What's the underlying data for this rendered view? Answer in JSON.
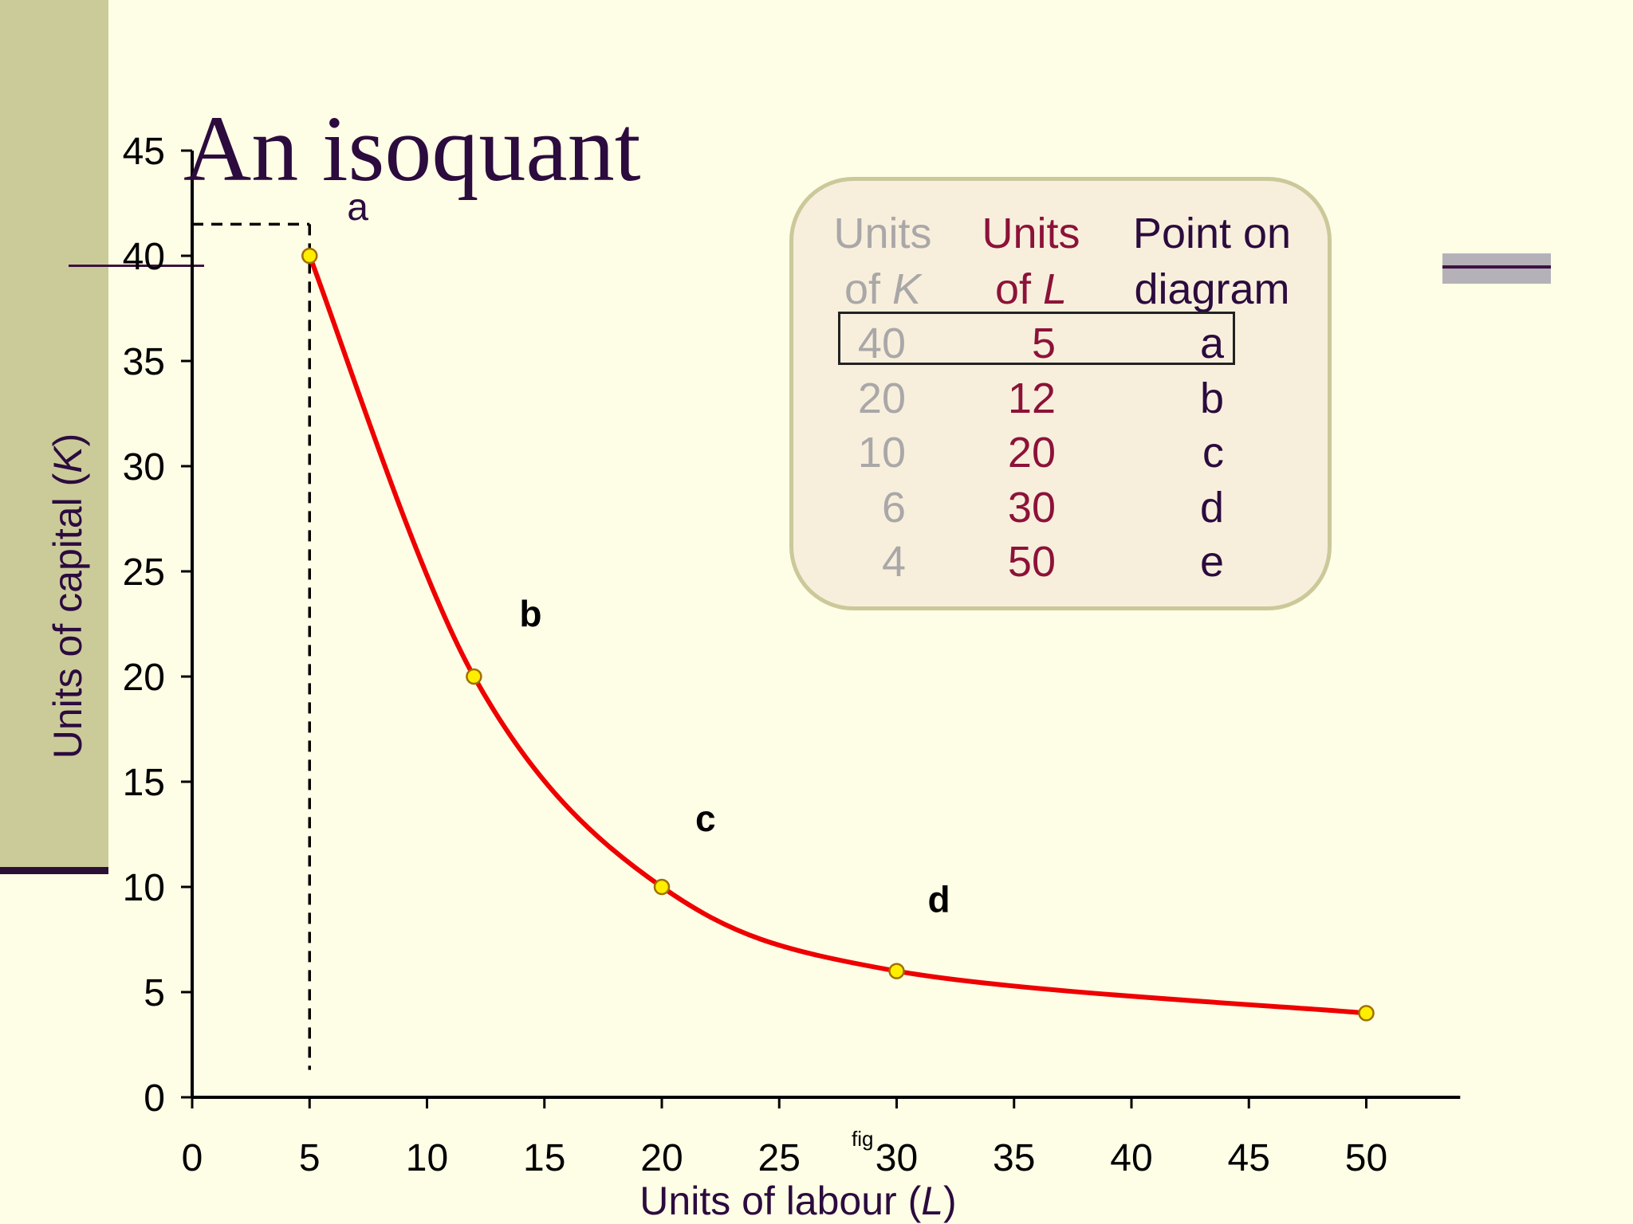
{
  "title": "An isoquant",
  "chart_data": {
    "type": "line",
    "xlabel_prefix": "Units of labour (",
    "xlabel_var": "L",
    "xlabel_suffix": ")",
    "ylabel_prefix": "Units of capital (",
    "ylabel_var": "K",
    "ylabel_suffix": ")",
    "xlim": [
      0,
      54
    ],
    "ylim": [
      0,
      45
    ],
    "xticks": [
      0,
      5,
      10,
      15,
      20,
      25,
      30,
      35,
      40,
      45,
      50
    ],
    "yticks": [
      0,
      5,
      10,
      15,
      20,
      25,
      30,
      35,
      40,
      45
    ],
    "series": [
      {
        "x": [
          5,
          12,
          20,
          30,
          50
        ],
        "y": [
          40,
          20,
          10,
          6,
          4
        ],
        "color": "#ee0000"
      }
    ],
    "marker_color": "#ffee00",
    "point_labels": [
      {
        "text": "a",
        "x": 5,
        "y": 40
      },
      {
        "text": "b",
        "x": 12,
        "y": 20
      },
      {
        "text": "c",
        "x": 20,
        "y": 10
      },
      {
        "text": "d",
        "x": 30,
        "y": 6
      }
    ],
    "reference_lines": {
      "x": 5,
      "y": 41.5
    },
    "footnote": "fig",
    "table": {
      "headers": [
        {
          "line1": "Units",
          "line2": "of",
          "var": "K"
        },
        {
          "line1": "Units",
          "line2": "of",
          "var": "L"
        },
        {
          "line1": "Point on",
          "line2": "diagram",
          "var": ""
        }
      ],
      "rows": [
        [
          "40",
          "5",
          "a"
        ],
        [
          "20",
          "12",
          "b"
        ],
        [
          "10",
          "20",
          "c"
        ],
        [
          "6",
          "30",
          "d"
        ],
        [
          "4",
          "50",
          "e"
        ]
      ],
      "highlighted_row": 0
    }
  }
}
